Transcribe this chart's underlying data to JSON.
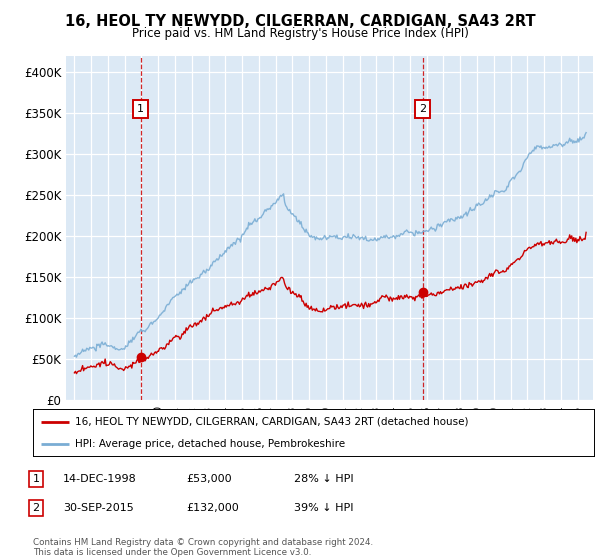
{
  "title": "16, HEOL TY NEWYDD, CILGERRAN, CARDIGAN, SA43 2RT",
  "subtitle": "Price paid vs. HM Land Registry's House Price Index (HPI)",
  "ylim": [
    0,
    420000
  ],
  "yticks": [
    0,
    50000,
    100000,
    150000,
    200000,
    250000,
    300000,
    350000,
    400000
  ],
  "ytick_labels": [
    "£0",
    "£50K",
    "£100K",
    "£150K",
    "£200K",
    "£250K",
    "£300K",
    "£350K",
    "£400K"
  ],
  "bg_color": "#dce9f5",
  "grid_color": "#ffffff",
  "red_color": "#cc0000",
  "blue_color": "#7aadd4",
  "sale1_year": 1998.96,
  "sale1_price": 53000,
  "sale2_year": 2015.75,
  "sale2_price": 132000,
  "legend1": "16, HEOL TY NEWYDD, CILGERRAN, CARDIGAN, SA43 2RT (detached house)",
  "legend2": "HPI: Average price, detached house, Pembrokeshire",
  "annotation1_date": "14-DEC-1998",
  "annotation1_price": "£53,000",
  "annotation1_hpi": "28% ↓ HPI",
  "annotation2_date": "30-SEP-2015",
  "annotation2_price": "£132,000",
  "annotation2_hpi": "39% ↓ HPI",
  "footer": "Contains HM Land Registry data © Crown copyright and database right 2024.\nThis data is licensed under the Open Government Licence v3.0.",
  "xlim_left": 1994.5,
  "xlim_right": 2025.9
}
